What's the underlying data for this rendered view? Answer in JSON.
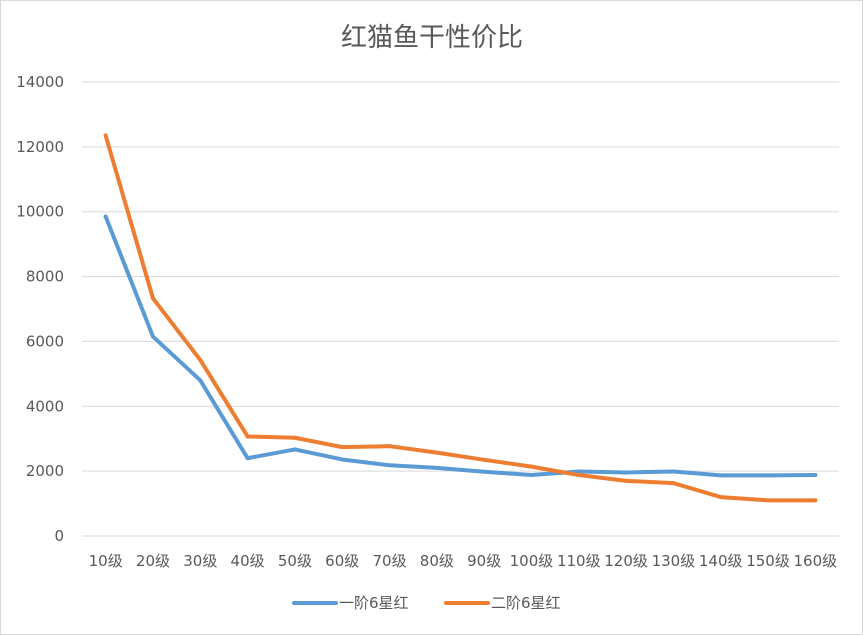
{
  "chart_data": {
    "type": "line",
    "title": "红猫鱼干性价比",
    "categories": [
      "10级",
      "20级",
      "30级",
      "40级",
      "50级",
      "60级",
      "70级",
      "80级",
      "90级",
      "100级",
      "110级",
      "120级",
      "130级",
      "140级",
      "150级",
      "160级"
    ],
    "ylim": [
      0,
      14000
    ],
    "yticks": [
      0,
      2000,
      4000,
      6000,
      8000,
      10000,
      12000,
      14000
    ],
    "grid": true,
    "legend_position": "bottom",
    "series": [
      {
        "name": "一阶6星红",
        "color": "#5b9bd5",
        "values": [
          9850,
          6150,
          4800,
          2400,
          2670,
          2360,
          2180,
          2100,
          1980,
          1880,
          1990,
          1960,
          1990,
          1870,
          1870,
          1880
        ]
      },
      {
        "name": "二阶6星红",
        "color": "#ed7d31",
        "values": [
          12350,
          7330,
          5430,
          3070,
          3030,
          2740,
          2770,
          2570,
          2350,
          2140,
          1880,
          1700,
          1630,
          1200,
          1100,
          1100
        ]
      }
    ]
  }
}
